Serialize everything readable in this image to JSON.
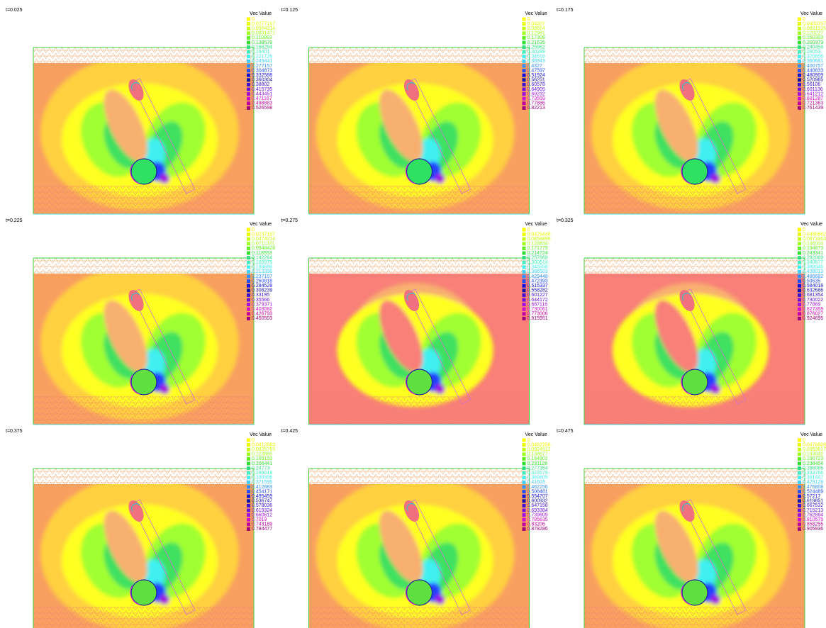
{
  "panels": [
    {
      "time": "t=0.025",
      "legend_title": "Vec Value",
      "legend_values": [
        0,
        0.0277157,
        0.0554314,
        0.0831471,
        0.110863,
        0.138578,
        0.166294,
        0.19401,
        0.221726,
        0.249441,
        0.277157,
        0.304873,
        0.332588,
        0.360304,
        0.38802,
        0.415735,
        0.443451,
        0.471167,
        0.498883,
        0.526598
      ]
    },
    {
      "time": "t=0.125",
      "legend_title": "Vec Value",
      "legend_values": [
        0,
        0.04327,
        0.08654,
        0.12981,
        0.17308,
        0.21635,
        0.25962,
        0.30289,
        0.34616,
        0.38943,
        0.4327,
        0.47597,
        0.51924,
        0.56251,
        0.60578,
        0.64905,
        0.69232,
        0.73559,
        0.77886,
        0.82213
      ]
    },
    {
      "time": "t=0.175",
      "legend_title": "Vec Value",
      "legend_values": [
        0,
        0.0400757,
        0.0801515,
        0.120227,
        0.160303,
        0.200379,
        0.240454,
        0.28053,
        0.320606,
        0.360681,
        0.400757,
        0.440833,
        0.480909,
        0.520985,
        0.56106,
        0.601136,
        0.641212,
        0.681287,
        0.721363,
        0.761439
      ]
    },
    {
      "time": "t=0.225",
      "legend_title": "Vec Value",
      "legend_values": [
        0,
        0.0237107,
        0.0474214,
        0.0711321,
        0.0948428,
        0.118553,
        0.142264,
        0.165975,
        0.189686,
        0.213396,
        0.237107,
        0.260818,
        0.284528,
        0.308239,
        0.33195,
        0.35566,
        0.379371,
        0.403082,
        0.426793,
        0.450503
      ]
    },
    {
      "time": "t=0.275",
      "legend_title": "Vec Value",
      "legend_values": [
        0,
        0.0429448,
        0.0858896,
        0.128834,
        0.171779,
        0.214724,
        0.257669,
        0.300614,
        0.343558,
        0.386503,
        0.429448,
        0.472393,
        0.515337,
        0.558282,
        0.601227,
        0.644172,
        0.687116,
        0.730061,
        0.773006,
        0.815951
      ]
    },
    {
      "time": "t=0.325",
      "legend_title": "Vec Value",
      "legend_values": [
        0,
        0.0486682,
        0.0973363,
        0.146004,
        0.194673,
        0.243341,
        0.292009,
        0.340677,
        0.389345,
        0.438013,
        0.486682,
        0.53535,
        0.584018,
        0.632686,
        0.681354,
        0.730022,
        0.77869,
        0.827359,
        0.876027,
        0.924695
      ]
    },
    {
      "time": "t=0.375",
      "legend_title": "Vec Value",
      "legend_values": [
        0,
        0.0412883,
        0.0825765,
        0.123865,
        0.165153,
        0.206441,
        0.24773,
        0.289018,
        0.330306,
        0.371595,
        0.412883,
        0.454171,
        0.495459,
        0.536747,
        0.578036,
        0.619324,
        0.660612,
        0.7019,
        0.743189,
        0.784477
      ]
    },
    {
      "time": "t=0.425",
      "legend_title": "Vec Value",
      "legend_values": [
        0,
        0.0462256,
        0.0924512,
        0.138677,
        0.184902,
        0.231128,
        0.277354,
        0.323579,
        0.369805,
        0.41603,
        0.462256,
        0.508481,
        0.554707,
        0.600932,
        0.647158,
        0.693384,
        0.739609,
        0.785835,
        0.83206,
        0.878286
      ]
    },
    {
      "time": "t=0.475",
      "legend_title": "Vec Value",
      "legend_values": [
        0,
        0.0476808,
        0.0953617,
        0.143042,
        0.190723,
        0.238404,
        0.286085,
        0.333766,
        0.381447,
        0.429128,
        0.476808,
        0.524489,
        0.57217,
        0.619851,
        0.667532,
        0.715213,
        0.762894,
        0.810575,
        0.858255,
        0.905936
      ]
    }
  ]
}
